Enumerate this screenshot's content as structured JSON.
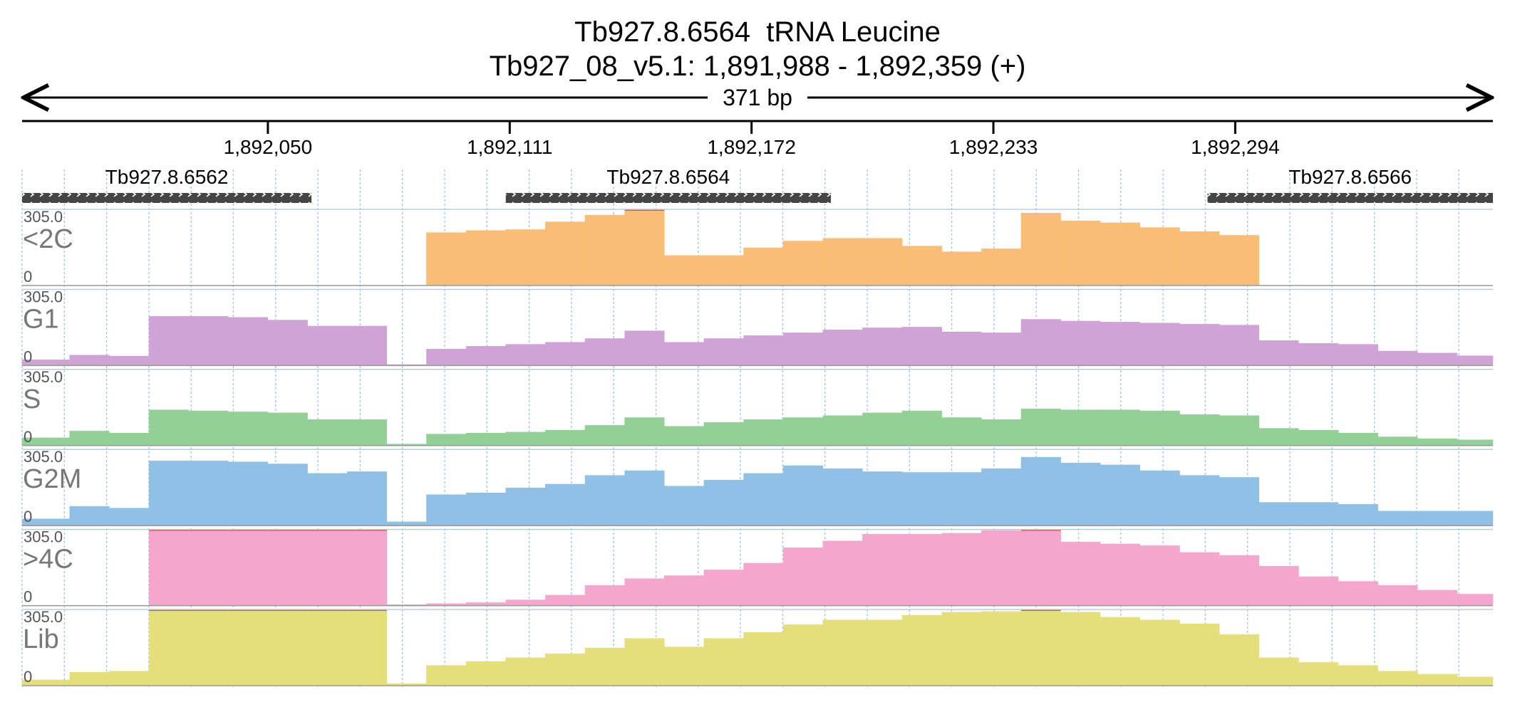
{
  "title": "Tb927.8.6564  tRNA Leucine",
  "subtitle": "Tb927_08_v5.1: 1,891,988 - 1,892,359 (+)",
  "span_label": "371 bp",
  "axis": {
    "xlim": [
      1891988,
      1892359
    ],
    "xticks": [
      {
        "value": 1892050,
        "label": "1,892,050"
      },
      {
        "value": 1892111,
        "label": "1,892,111"
      },
      {
        "value": 1892172,
        "label": "1,892,172"
      },
      {
        "value": 1892233,
        "label": "1,892,233"
      },
      {
        "value": 1892294,
        "label": "1,892,294"
      }
    ],
    "bins": [
      1891988,
      1892000,
      1892010,
      1892020,
      1892030,
      1892040,
      1892050,
      1892060,
      1892070,
      1892080,
      1892090,
      1892100,
      1892110,
      1892120,
      1892130,
      1892140,
      1892150,
      1892160,
      1892170,
      1892180,
      1892190,
      1892200,
      1892210,
      1892220,
      1892230,
      1892240,
      1892250,
      1892260,
      1892270,
      1892280,
      1892290,
      1892300,
      1892310,
      1892320,
      1892330,
      1892340,
      1892350,
      1892359
    ]
  },
  "genes": [
    {
      "name": "Tb927.8.6562",
      "start": 1891988,
      "end": 1892061
    },
    {
      "name": "Tb927.8.6564",
      "start": 1892110,
      "end": 1892192
    },
    {
      "name": "Tb927.8.6566",
      "start": 1892287,
      "end": 1892359
    }
  ],
  "chart_data": [
    {
      "type": "bar",
      "name": "<2C",
      "color": "#f9bd75",
      "ylim": [
        0,
        305
      ],
      "yticks": [
        0,
        {
          "value": 305,
          "label": "305.0"
        }
      ],
      "values": [
        0,
        0,
        0,
        0,
        0,
        0,
        0,
        0,
        0,
        0,
        212,
        220,
        224,
        255,
        282,
        305,
        120,
        120,
        151,
        178,
        189,
        189,
        158,
        135,
        147,
        290,
        259,
        251,
        232,
        216,
        201,
        0,
        0,
        0,
        0,
        0,
        0
      ]
    },
    {
      "type": "bar",
      "name": "G1",
      "color": "#cfa3d6",
      "ylim": [
        0,
        305
      ],
      "yticks": [
        0,
        {
          "value": 305,
          "label": "305.0"
        }
      ],
      "values": [
        23,
        42,
        38,
        197,
        197,
        193,
        182,
        158,
        158,
        4,
        66,
        77,
        85,
        93,
        108,
        139,
        93,
        108,
        120,
        131,
        143,
        151,
        154,
        135,
        131,
        185,
        178,
        174,
        170,
        166,
        162,
        100,
        89,
        85,
        58,
        50,
        39
      ]
    },
    {
      "type": "bar",
      "name": "S",
      "color": "#93d096",
      "ylim": [
        0,
        305
      ],
      "yticks": [
        0,
        {
          "value": 305,
          "label": "305.0"
        }
      ],
      "values": [
        31,
        58,
        50,
        143,
        139,
        135,
        131,
        104,
        104,
        6,
        46,
        50,
        54,
        62,
        81,
        112,
        77,
        93,
        104,
        112,
        120,
        131,
        139,
        112,
        104,
        147,
        143,
        143,
        139,
        124,
        120,
        69,
        62,
        50,
        35,
        27,
        23
      ]
    },
    {
      "type": "bar",
      "name": "G2M",
      "color": "#8fc1e6",
      "ylim": [
        0,
        305
      ],
      "yticks": [
        0,
        {
          "value": 305,
          "label": "305.0"
        }
      ],
      "values": [
        27,
        77,
        70,
        259,
        259,
        255,
        247,
        209,
        216,
        15,
        124,
        131,
        151,
        166,
        201,
        220,
        158,
        182,
        209,
        240,
        228,
        216,
        213,
        213,
        228,
        274,
        251,
        243,
        220,
        201,
        193,
        93,
        93,
        85,
        58,
        58,
        58
      ]
    },
    {
      "type": "bar",
      "name": ">4C",
      "color": "#f4a6cd",
      "ylim": [
        0,
        305
      ],
      "yticks": [
        0,
        {
          "value": 305,
          "label": "305.0"
        }
      ],
      "values": [
        0,
        0,
        0,
        305,
        305,
        305,
        305,
        305,
        305,
        4,
        8,
        12,
        23,
        42,
        81,
        108,
        120,
        143,
        170,
        232,
        259,
        286,
        286,
        290,
        301,
        305,
        255,
        247,
        240,
        213,
        201,
        158,
        116,
        97,
        81,
        62,
        46
      ]
    },
    {
      "type": "bar",
      "name": "Lib",
      "color": "#e4df7a",
      "ylim": [
        0,
        305
      ],
      "yticks": [
        0,
        {
          "value": 305,
          "label": "305.0"
        }
      ],
      "values": [
        23,
        54,
        58,
        305,
        305,
        305,
        305,
        305,
        305,
        8,
        81,
        97,
        112,
        128,
        151,
        189,
        155,
        189,
        213,
        244,
        263,
        263,
        282,
        294,
        297,
        305,
        294,
        274,
        263,
        247,
        205,
        112,
        93,
        81,
        58,
        46,
        35
      ]
    }
  ]
}
